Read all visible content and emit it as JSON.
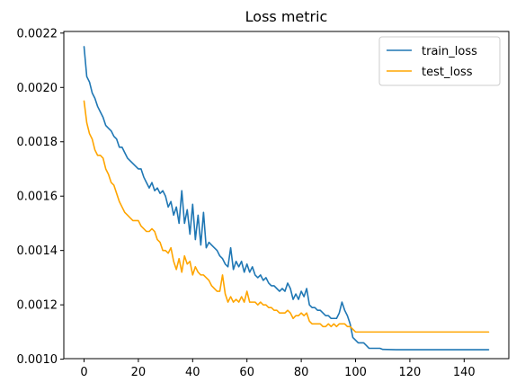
{
  "chart_data": {
    "type": "line",
    "title": "Loss metric",
    "xlabel": "",
    "ylabel": "",
    "xlim": [
      -7.45,
      156.45
    ],
    "ylim": [
      0.001002,
      0.002206
    ],
    "x_ticks": [
      0,
      20,
      40,
      60,
      80,
      100,
      120,
      140
    ],
    "y_ticks": [
      0.001,
      0.0012,
      0.0014,
      0.0016,
      0.0018,
      0.002,
      0.0022
    ],
    "y_tick_labels": [
      "0.0010",
      "0.0012",
      "0.0014",
      "0.0016",
      "0.0018",
      "0.0020",
      "0.0022"
    ],
    "grid": false,
    "legend_position": "top-right",
    "series": [
      {
        "name": "train_loss",
        "color": "#1f77b4",
        "points": [
          [
            0,
            0.00215
          ],
          [
            1,
            0.00204
          ],
          [
            2,
            0.00202
          ],
          [
            3,
            0.00198
          ],
          [
            4,
            0.00196
          ],
          [
            5,
            0.00193
          ],
          [
            6,
            0.00191
          ],
          [
            7,
            0.00189
          ],
          [
            8,
            0.00186
          ],
          [
            9,
            0.00185
          ],
          [
            10,
            0.00184
          ],
          [
            11,
            0.00182
          ],
          [
            12,
            0.00181
          ],
          [
            13,
            0.00178
          ],
          [
            14,
            0.00178
          ],
          [
            15,
            0.00176
          ],
          [
            16,
            0.00174
          ],
          [
            17,
            0.00173
          ],
          [
            18,
            0.00172
          ],
          [
            19,
            0.00171
          ],
          [
            20,
            0.0017
          ],
          [
            21,
            0.0017
          ],
          [
            22,
            0.00167
          ],
          [
            23,
            0.00165
          ],
          [
            24,
            0.00163
          ],
          [
            25,
            0.00165
          ],
          [
            26,
            0.00162
          ],
          [
            27,
            0.00163
          ],
          [
            28,
            0.00161
          ],
          [
            29,
            0.00162
          ],
          [
            30,
            0.0016
          ],
          [
            31,
            0.00156
          ],
          [
            32,
            0.00158
          ],
          [
            33,
            0.00153
          ],
          [
            34,
            0.00156
          ],
          [
            35,
            0.0015
          ],
          [
            36,
            0.00162
          ],
          [
            37,
            0.0015
          ],
          [
            38,
            0.00155
          ],
          [
            39,
            0.00146
          ],
          [
            40,
            0.00157
          ],
          [
            41,
            0.00144
          ],
          [
            42,
            0.00153
          ],
          [
            43,
            0.00142
          ],
          [
            44,
            0.00154
          ],
          [
            45,
            0.00141
          ],
          [
            46,
            0.00143
          ],
          [
            47,
            0.00142
          ],
          [
            48,
            0.00141
          ],
          [
            49,
            0.0014
          ],
          [
            50,
            0.00138
          ],
          [
            51,
            0.00137
          ],
          [
            52,
            0.00135
          ],
          [
            53,
            0.00134
          ],
          [
            54,
            0.00141
          ],
          [
            55,
            0.00133
          ],
          [
            56,
            0.00136
          ],
          [
            57,
            0.00134
          ],
          [
            58,
            0.00136
          ],
          [
            59,
            0.00132
          ],
          [
            60,
            0.00135
          ],
          [
            61,
            0.00132
          ],
          [
            62,
            0.00134
          ],
          [
            63,
            0.00131
          ],
          [
            64,
            0.0013
          ],
          [
            65,
            0.00131
          ],
          [
            66,
            0.00129
          ],
          [
            67,
            0.0013
          ],
          [
            68,
            0.00128
          ],
          [
            69,
            0.00127
          ],
          [
            70,
            0.00127
          ],
          [
            71,
            0.00126
          ],
          [
            72,
            0.00125
          ],
          [
            73,
            0.00126
          ],
          [
            74,
            0.00125
          ],
          [
            75,
            0.00128
          ],
          [
            76,
            0.00126
          ],
          [
            77,
            0.00122
          ],
          [
            78,
            0.00124
          ],
          [
            79,
            0.00122
          ],
          [
            80,
            0.00125
          ],
          [
            81,
            0.00123
          ],
          [
            82,
            0.00126
          ],
          [
            83,
            0.0012
          ],
          [
            84,
            0.00119
          ],
          [
            85,
            0.00119
          ],
          [
            86,
            0.00118
          ],
          [
            87,
            0.00118
          ],
          [
            88,
            0.00117
          ],
          [
            89,
            0.00116
          ],
          [
            90,
            0.00116
          ],
          [
            91,
            0.00115
          ],
          [
            92,
            0.00115
          ],
          [
            93,
            0.00115
          ],
          [
            94,
            0.00117
          ],
          [
            95,
            0.00121
          ],
          [
            96,
            0.00118
          ],
          [
            97,
            0.00116
          ],
          [
            98,
            0.00113
          ],
          [
            99,
            0.00108
          ],
          [
            100,
            0.00107
          ],
          [
            101,
            0.00106
          ],
          [
            102,
            0.00106
          ],
          [
            103,
            0.00106
          ],
          [
            104,
            0.00105
          ],
          [
            105,
            0.00104
          ],
          [
            106,
            0.00104
          ],
          [
            107,
            0.00104
          ],
          [
            108,
            0.00104
          ],
          [
            109,
            0.00104
          ],
          [
            110,
            0.001036
          ],
          [
            115,
            0.001035
          ],
          [
            120,
            0.001035
          ],
          [
            125,
            0.001035
          ],
          [
            130,
            0.001035
          ],
          [
            135,
            0.001035
          ],
          [
            140,
            0.001035
          ],
          [
            145,
            0.001035
          ],
          [
            149,
            0.001035
          ]
        ]
      },
      {
        "name": "test_loss",
        "color": "#ffa500",
        "points": [
          [
            0,
            0.00195
          ],
          [
            1,
            0.00187
          ],
          [
            2,
            0.00183
          ],
          [
            3,
            0.00181
          ],
          [
            4,
            0.00177
          ],
          [
            5,
            0.00175
          ],
          [
            6,
            0.00175
          ],
          [
            7,
            0.00174
          ],
          [
            8,
            0.0017
          ],
          [
            9,
            0.00168
          ],
          [
            10,
            0.00165
          ],
          [
            11,
            0.00164
          ],
          [
            12,
            0.00161
          ],
          [
            13,
            0.00158
          ],
          [
            14,
            0.00156
          ],
          [
            15,
            0.00154
          ],
          [
            16,
            0.00153
          ],
          [
            17,
            0.00152
          ],
          [
            18,
            0.00151
          ],
          [
            19,
            0.00151
          ],
          [
            20,
            0.00151
          ],
          [
            21,
            0.00149
          ],
          [
            22,
            0.00148
          ],
          [
            23,
            0.00147
          ],
          [
            24,
            0.00147
          ],
          [
            25,
            0.00148
          ],
          [
            26,
            0.00147
          ],
          [
            27,
            0.00144
          ],
          [
            28,
            0.00143
          ],
          [
            29,
            0.0014
          ],
          [
            30,
            0.0014
          ],
          [
            31,
            0.00139
          ],
          [
            32,
            0.00141
          ],
          [
            33,
            0.00136
          ],
          [
            34,
            0.00133
          ],
          [
            35,
            0.00137
          ],
          [
            36,
            0.00132
          ],
          [
            37,
            0.00138
          ],
          [
            38,
            0.00135
          ],
          [
            39,
            0.00136
          ],
          [
            40,
            0.00131
          ],
          [
            41,
            0.00134
          ],
          [
            42,
            0.00132
          ],
          [
            43,
            0.00131
          ],
          [
            44,
            0.00131
          ],
          [
            45,
            0.0013
          ],
          [
            46,
            0.00129
          ],
          [
            47,
            0.00127
          ],
          [
            48,
            0.00126
          ],
          [
            49,
            0.00125
          ],
          [
            50,
            0.00125
          ],
          [
            51,
            0.00131
          ],
          [
            52,
            0.00124
          ],
          [
            53,
            0.00121
          ],
          [
            54,
            0.00123
          ],
          [
            55,
            0.00121
          ],
          [
            56,
            0.00122
          ],
          [
            57,
            0.00121
          ],
          [
            58,
            0.00123
          ],
          [
            59,
            0.00121
          ],
          [
            60,
            0.00125
          ],
          [
            61,
            0.00121
          ],
          [
            62,
            0.00121
          ],
          [
            63,
            0.00121
          ],
          [
            64,
            0.0012
          ],
          [
            65,
            0.00121
          ],
          [
            66,
            0.0012
          ],
          [
            67,
            0.0012
          ],
          [
            68,
            0.00119
          ],
          [
            69,
            0.00119
          ],
          [
            70,
            0.00118
          ],
          [
            71,
            0.00118
          ],
          [
            72,
            0.00117
          ],
          [
            73,
            0.00117
          ],
          [
            74,
            0.00117
          ],
          [
            75,
            0.00118
          ],
          [
            76,
            0.00117
          ],
          [
            77,
            0.00115
          ],
          [
            78,
            0.00116
          ],
          [
            79,
            0.00116
          ],
          [
            80,
            0.00117
          ],
          [
            81,
            0.00116
          ],
          [
            82,
            0.00117
          ],
          [
            83,
            0.00114
          ],
          [
            84,
            0.00113
          ],
          [
            85,
            0.00113
          ],
          [
            86,
            0.00113
          ],
          [
            87,
            0.00113
          ],
          [
            88,
            0.00112
          ],
          [
            89,
            0.00112
          ],
          [
            90,
            0.00113
          ],
          [
            91,
            0.00112
          ],
          [
            92,
            0.00113
          ],
          [
            93,
            0.00112
          ],
          [
            94,
            0.00113
          ],
          [
            95,
            0.00113
          ],
          [
            96,
            0.00113
          ],
          [
            97,
            0.00112
          ],
          [
            98,
            0.00112
          ],
          [
            99,
            0.00111
          ],
          [
            100,
            0.0011
          ],
          [
            101,
            0.0011
          ],
          [
            102,
            0.0011
          ],
          [
            103,
            0.0011
          ],
          [
            104,
            0.0011
          ],
          [
            105,
            0.0011
          ],
          [
            110,
            0.0011
          ],
          [
            115,
            0.0011
          ],
          [
            120,
            0.0011
          ],
          [
            125,
            0.0011
          ],
          [
            130,
            0.0011
          ],
          [
            135,
            0.0011
          ],
          [
            140,
            0.0011
          ],
          [
            145,
            0.0011
          ],
          [
            149,
            0.0011
          ]
        ]
      }
    ]
  }
}
